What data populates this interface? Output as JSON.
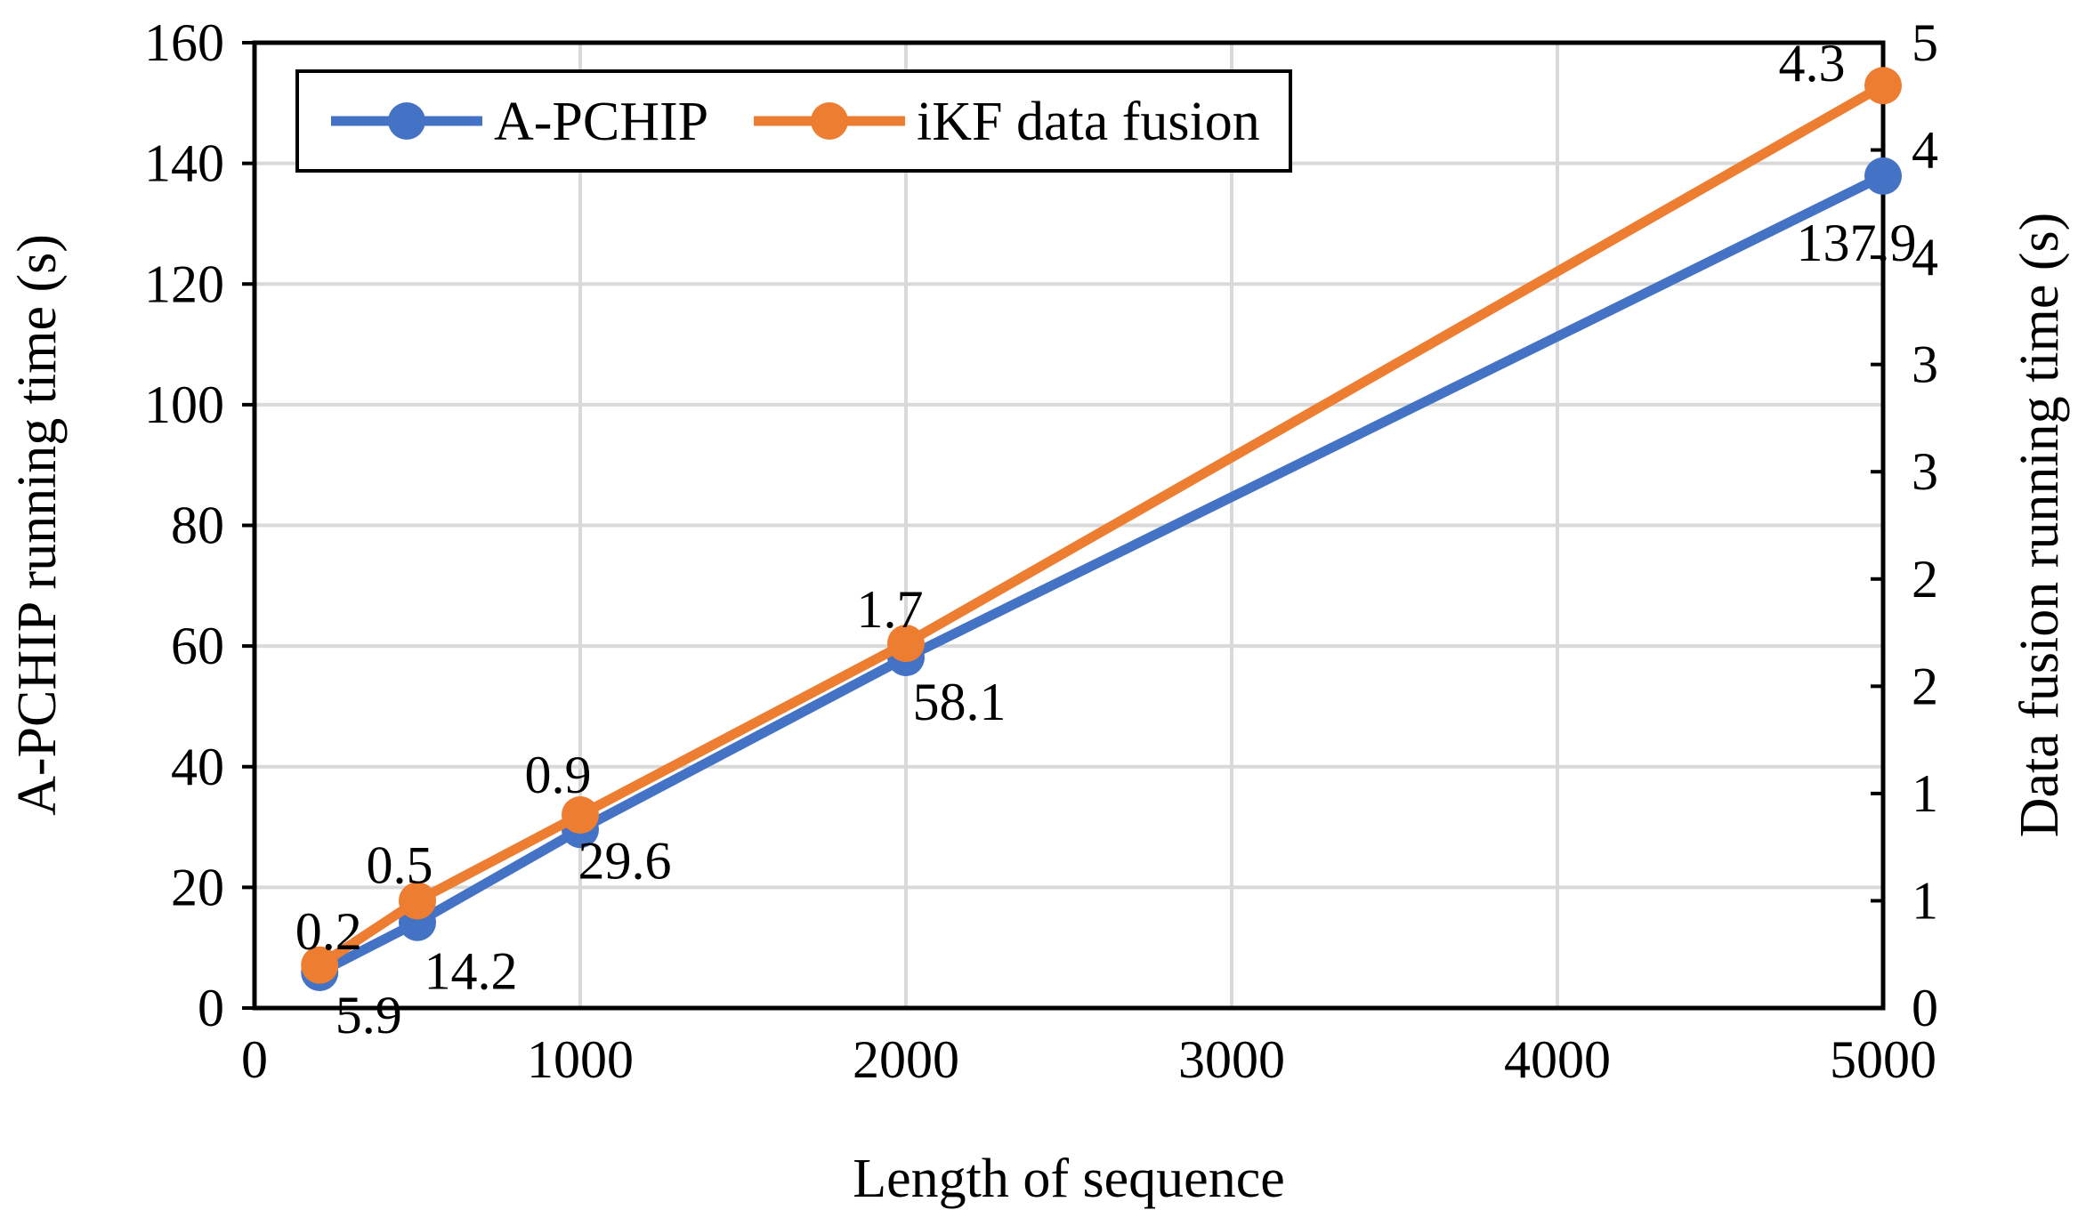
{
  "chart_data": {
    "type": "line",
    "title": "",
    "xlabel": "Length of sequence",
    "ylabel": "A-PCHIP running time (s)",
    "y2label": "Data fusion running time (s)",
    "xlim": [
      0,
      5000
    ],
    "ylim": [
      0,
      160
    ],
    "y2lim": [
      0,
      4.5
    ],
    "x_ticks": [
      0,
      1000,
      2000,
      3000,
      4000,
      5000
    ],
    "x_tick_labels": [
      "0",
      "1000",
      "2000",
      "3000",
      "4000",
      "5000"
    ],
    "y_ticks": [
      0,
      20,
      40,
      60,
      80,
      100,
      120,
      140,
      160
    ],
    "y_tick_labels": [
      "0",
      "20",
      "40",
      "60",
      "80",
      "100",
      "120",
      "140",
      "160"
    ],
    "y2_ticks": [
      0,
      0.5,
      1,
      1.5,
      2,
      2.5,
      3,
      3.5,
      4,
      4.5
    ],
    "y2_tick_labels": [
      "0",
      "1",
      "1",
      "2",
      "2",
      "3",
      "3",
      "4",
      "4",
      "5"
    ],
    "grid": true,
    "legend_position": "top-left",
    "series": [
      {
        "name": "A-PCHIP",
        "axis": "left",
        "color": "#4472C4",
        "x": [
          200,
          500,
          1000,
          2000,
          5000
        ],
        "values": [
          5.9,
          14.2,
          29.6,
          58.1,
          137.9
        ],
        "labels": [
          "5.9",
          "14.2",
          "29.6",
          "58.1",
          "137.9"
        ]
      },
      {
        "name": "iKF data fusion",
        "axis": "right",
        "color": "#ED7D31",
        "x": [
          200,
          500,
          1000,
          2000,
          5000
        ],
        "values": [
          0.2,
          0.5,
          0.9,
          1.7,
          4.3
        ],
        "labels": [
          "0.2",
          "0.5",
          "0.9",
          "1.7",
          "4.3"
        ]
      }
    ]
  }
}
